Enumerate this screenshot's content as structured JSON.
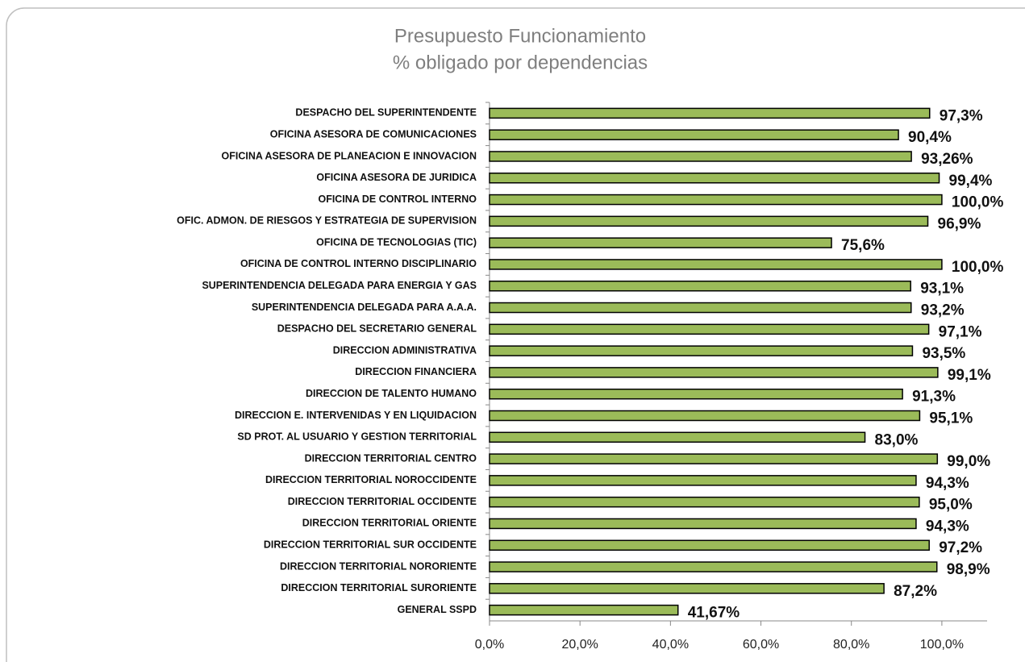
{
  "chart_data": {
    "type": "barh",
    "title": "Presupuesto Funcionamiento",
    "subtitle": "% obligado por dependencias",
    "categories": [
      "DESPACHO DEL SUPERINTENDENTE",
      "OFICINA ASESORA DE COMUNICACIONES",
      "OFICINA ASESORA DE PLANEACION E INNOVACION",
      "OFICINA ASESORA DE  JURIDICA",
      "OFICINA DE CONTROL INTERNO",
      "OFIC. ADMON. DE RIESGOS  Y ESTRATEGIA DE SUPERVISION",
      "OFICINA DE TECNOLOGIAS (TIC)",
      "OFICINA DE CONTROL INTERNO DISCIPLINARIO",
      "SUPERINTENDENCIA DELEGADA PARA ENERGIA Y GAS",
      "SUPERINTENDENCIA DELEGADA PARA A.A.A.",
      "DESPACHO DEL SECRETARIO GENERAL",
      "DIRECCION ADMINISTRATIVA",
      "DIRECCION FINANCIERA",
      "DIRECCION DE TALENTO HUMANO",
      "DIRECCION E. INTERVENIDAS Y EN LIQUIDACION",
      "SD PROT. AL USUARIO Y GESTION TERRITORIAL",
      "DIRECCION TERRITORIAL CENTRO",
      "DIRECCION TERRITORIAL NOROCCIDENTE",
      "DIRECCION TERRITORIAL OCCIDENTE",
      "DIRECCION TERRITORIAL ORIENTE",
      "DIRECCION TERRITORIAL SUR OCCIDENTE",
      "DIRECCION TERRITORIAL NORORIENTE",
      "DIRECCION TERRITORIAL SURORIENTE",
      "GENERAL SSPD"
    ],
    "values": [
      97.3,
      90.4,
      93.26,
      99.4,
      100.0,
      96.9,
      75.6,
      100.0,
      93.1,
      93.2,
      97.1,
      93.5,
      99.1,
      91.3,
      95.1,
      83.0,
      99.0,
      94.3,
      95.0,
      94.3,
      97.2,
      98.9,
      87.2,
      41.67
    ],
    "value_labels": [
      "97,3%",
      "90,4%",
      "93,26%",
      "99,4%",
      "100,0%",
      "96,9%",
      "75,6%",
      "100,0%",
      "93,1%",
      "93,2%",
      "97,1%",
      "93,5%",
      "99,1%",
      "91,3%",
      "95,1%",
      "83,0%",
      "99,0%",
      "94,3%",
      "95,0%",
      "94,3%",
      "97,2%",
      "98,9%",
      "87,2%",
      "41,67%"
    ],
    "color": "#9bbb59",
    "xlim": [
      0,
      110
    ],
    "xticks": [
      {
        "value": 0,
        "label": "0,0%"
      },
      {
        "value": 20,
        "label": "20,0%"
      },
      {
        "value": 40,
        "label": "40,0%"
      },
      {
        "value": 60,
        "label": "60,0%"
      },
      {
        "value": 80,
        "label": "80,0%"
      },
      {
        "value": 100,
        "label": "100,0%"
      }
    ],
    "grid": false
  }
}
